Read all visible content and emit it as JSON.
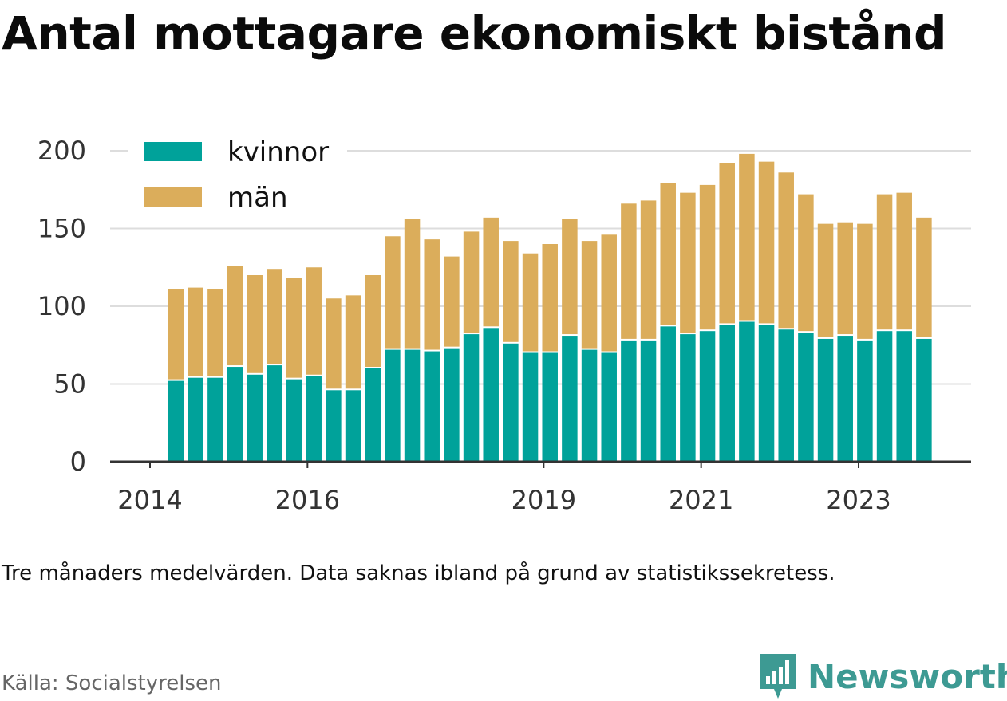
{
  "title": "Antal mottagare ekonomiskt bistånd",
  "note": "Tre månaders medelvärden. Data saknas ibland på grund av statistikssekretess.",
  "source": "Källa: Socialstyrelsen",
  "brand": {
    "name": "Newsworthy",
    "icon": "newsworthy-logo-icon",
    "color": "#3d9a93"
  },
  "colors": {
    "kvinnor": "#00a29a",
    "man": "#dbad5b",
    "grid": "#dddddd",
    "axis": "#333333"
  },
  "chart_data": {
    "type": "bar",
    "stacked": true,
    "grid": true,
    "legend_position": "top-left",
    "ylim": [
      0,
      200
    ],
    "y_ticks": [
      0,
      50,
      100,
      150,
      200
    ],
    "x_ticks": [
      {
        "label": "2014",
        "x": 2014.0
      },
      {
        "label": "2016",
        "x": 2016.0
      },
      {
        "label": "2019",
        "x": 2019.0
      },
      {
        "label": "2021",
        "x": 2021.0
      },
      {
        "label": "2023",
        "x": 2023.0
      }
    ],
    "x": [
      2014.33,
      2014.58,
      2014.83,
      2015.08,
      2015.33,
      2015.58,
      2015.83,
      2016.08,
      2016.33,
      2016.58,
      2016.83,
      2017.08,
      2017.33,
      2017.58,
      2017.83,
      2018.08,
      2018.33,
      2018.58,
      2018.83,
      2019.08,
      2019.33,
      2019.58,
      2019.83,
      2020.08,
      2020.33,
      2020.58,
      2020.83,
      2021.08,
      2021.33,
      2021.58,
      2021.83,
      2022.08,
      2022.33,
      2022.58,
      2022.83,
      2023.08,
      2023.33,
      2023.58,
      2023.83
    ],
    "series": [
      {
        "name": "kvinnor",
        "color": "#00a29a",
        "values": [
          52,
          54,
          54,
          61,
          56,
          62,
          53,
          55,
          46,
          46,
          60,
          72,
          72,
          71,
          73,
          82,
          86,
          76,
          70,
          70,
          81,
          72,
          70,
          78,
          78,
          87,
          82,
          84,
          88,
          90,
          88,
          85,
          83,
          79,
          81,
          78,
          84,
          84,
          79
        ]
      },
      {
        "name": "män",
        "color": "#dbad5b",
        "values": [
          59,
          58,
          57,
          65,
          64,
          62,
          65,
          70,
          59,
          61,
          60,
          73,
          84,
          72,
          59,
          66,
          71,
          66,
          64,
          70,
          75,
          70,
          76,
          88,
          90,
          92,
          91,
          94,
          104,
          108,
          105,
          101,
          89,
          74,
          73,
          75,
          88,
          89,
          78
        ]
      }
    ]
  }
}
